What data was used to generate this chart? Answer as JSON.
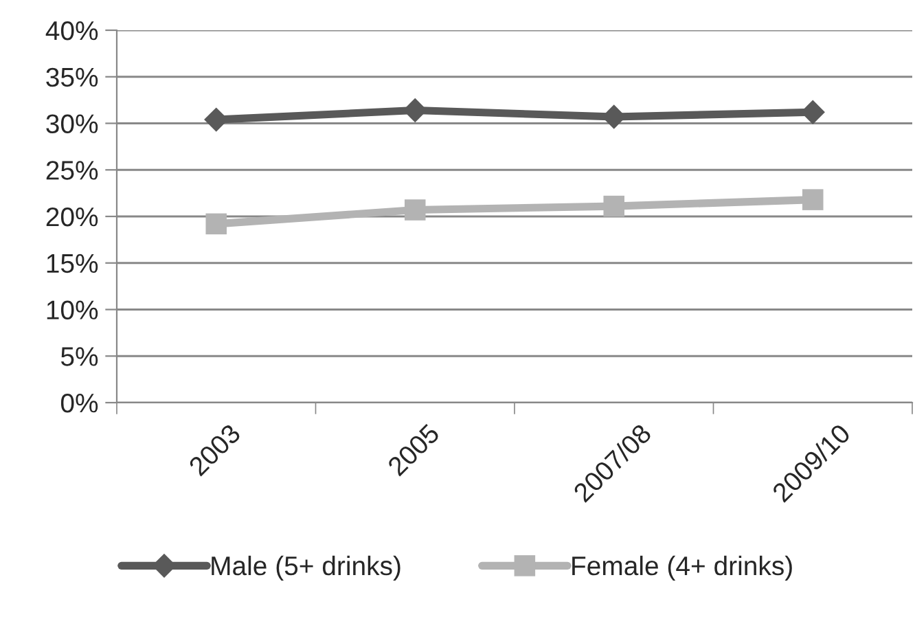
{
  "chart_data": {
    "type": "line",
    "categories": [
      "2003",
      "2005",
      "2007/08",
      "2009/10"
    ],
    "series": [
      {
        "name": "Male (5+ drinks)",
        "color": "#595959",
        "marker": "diamond",
        "values": [
          30.4,
          31.4,
          30.7,
          31.2
        ]
      },
      {
        "name": "Female (4+ drinks)",
        "color": "#b3b3b3",
        "marker": "square",
        "values": [
          19.2,
          20.7,
          21.1,
          21.8
        ]
      }
    ],
    "ylim": [
      0,
      40
    ],
    "yticks": [
      {
        "value": 0,
        "label": "0%"
      },
      {
        "value": 5,
        "label": "5%"
      },
      {
        "value": 10,
        "label": "10%"
      },
      {
        "value": 15,
        "label": "15%"
      },
      {
        "value": 20,
        "label": "20%"
      },
      {
        "value": 25,
        "label": "25%"
      },
      {
        "value": 30,
        "label": "30%"
      },
      {
        "value": 35,
        "label": "35%"
      },
      {
        "value": 40,
        "label": "40%"
      }
    ],
    "grid": "y",
    "legend": "bottom"
  }
}
